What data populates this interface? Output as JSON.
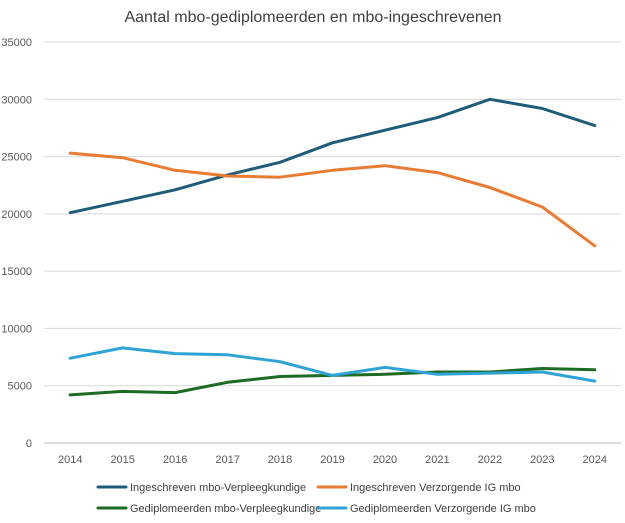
{
  "chart_data": {
    "type": "line",
    "title": "Aantal mbo-gediplomeerden en mbo-ingeschrevenen",
    "xlabel": "",
    "ylabel": "",
    "x": [
      "2014",
      "2015",
      "2016",
      "2017",
      "2018",
      "2019",
      "2020",
      "2021",
      "2022",
      "2023",
      "2024"
    ],
    "ylim": [
      0,
      35000
    ],
    "yticks": [
      "0",
      "5000",
      "10000",
      "15000",
      "20000",
      "25000",
      "30000",
      "35000"
    ],
    "grid": true,
    "legend_position": "bottom",
    "series": [
      {
        "name": "Ingeschreven mbo-Verpleegkundige",
        "color": "#1f5c7a",
        "values": [
          20100,
          21100,
          22100,
          23400,
          24500,
          26200,
          27300,
          28400,
          30000,
          29200,
          27700
        ]
      },
      {
        "name": "Ingeschreven Verzorgende IG mbo",
        "color": "#e97b32",
        "values": [
          25300,
          24900,
          23800,
          23300,
          23200,
          23800,
          24200,
          23600,
          22300,
          20600,
          17200
        ]
      },
      {
        "name": "Gediplomeerden mbo-Verpleegkundige",
        "color": "#1e6b24",
        "values": [
          4200,
          4500,
          4400,
          5300,
          5800,
          5900,
          6000,
          6200,
          6200,
          6500,
          6400
        ]
      },
      {
        "name": "Gediplomeerden Verzorgende IG mbo",
        "color": "#2ea3d6",
        "values": [
          7400,
          8300,
          7800,
          7700,
          7100,
          5900,
          6600,
          6000,
          6100,
          6200,
          5400
        ]
      }
    ]
  }
}
